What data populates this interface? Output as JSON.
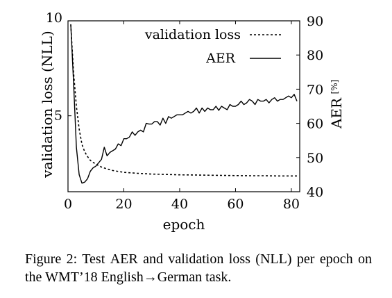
{
  "chart_data": {
    "type": "line",
    "xlabel": "epoch",
    "ylabel_left": "validation loss (NLL)",
    "ylabel_right": "AER",
    "ylabel_right_unit": "[%]",
    "xlim": [
      0,
      83
    ],
    "ylim_left": [
      1.0,
      10.0
    ],
    "ylim_right": [
      40,
      90
    ],
    "x_ticks": [
      0,
      20,
      40,
      60,
      80
    ],
    "y_left_ticks": [
      5,
      10
    ],
    "y_right_ticks": [
      40,
      50,
      60,
      70,
      80,
      90
    ],
    "legend_position": "top-right",
    "grid": false,
    "series": [
      {
        "name": "validation loss",
        "axis": "left",
        "style": "dotted",
        "x": [
          1,
          2,
          3,
          4,
          5,
          6,
          7,
          8,
          10,
          12,
          14,
          16,
          18,
          20,
          25,
          30,
          35,
          40,
          45,
          50,
          55,
          60,
          65,
          70,
          75,
          80,
          82
        ],
        "values": [
          9.8,
          7.3,
          5.5,
          4.3,
          3.5,
          3.1,
          2.85,
          2.65,
          2.45,
          2.3,
          2.2,
          2.12,
          2.07,
          2.02,
          1.97,
          1.93,
          1.91,
          1.89,
          1.88,
          1.87,
          1.86,
          1.85,
          1.84,
          1.84,
          1.83,
          1.83,
          1.83
        ]
      },
      {
        "name": "AER",
        "axis": "right",
        "style": "solid",
        "x": [
          1,
          2,
          3,
          4,
          5,
          6,
          7,
          8,
          9,
          10,
          11,
          12,
          13,
          14,
          15,
          16,
          17,
          18,
          19,
          20,
          21,
          22,
          23,
          24,
          25,
          26,
          27,
          28,
          29,
          30,
          31,
          32,
          33,
          34,
          35,
          36,
          37,
          38,
          39,
          40,
          41,
          42,
          43,
          44,
          45,
          46,
          47,
          48,
          49,
          50,
          51,
          52,
          53,
          54,
          55,
          56,
          57,
          58,
          59,
          60,
          61,
          62,
          63,
          64,
          65,
          66,
          67,
          68,
          69,
          70,
          71,
          72,
          73,
          74,
          75,
          76,
          77,
          78,
          79,
          80,
          81,
          82
        ],
        "values": [
          89,
          72,
          53,
          45,
          42.5,
          42.8,
          43.8,
          46,
          47,
          47.5,
          48.5,
          49.5,
          53,
          50.5,
          51.5,
          52,
          52.5,
          54,
          53.5,
          55.5,
          55.5,
          56,
          57.5,
          56.5,
          57.5,
          58,
          57.5,
          60,
          59.8,
          59.8,
          60.5,
          60.5,
          59.5,
          61.5,
          60,
          62,
          61.5,
          62,
          62.5,
          62.5,
          62.5,
          63,
          63.5,
          63,
          63.5,
          64.5,
          63,
          64.5,
          63.5,
          64.5,
          64,
          64,
          65,
          63.8,
          65,
          64.5,
          64,
          65.5,
          65,
          65,
          65.5,
          66.5,
          65.5,
          66,
          67,
          66.5,
          65.5,
          67,
          66.5,
          66.5,
          67,
          66,
          67,
          67.5,
          66.5,
          67,
          67,
          67.5,
          68,
          67.5,
          68.5,
          66.5
        ]
      }
    ]
  },
  "caption": {
    "label": "Figure 2:",
    "text_1": " Test ",
    "aer": "AER",
    "text_2": " and validation loss (NLL) per epoch on the WMT’18 English→German task."
  }
}
